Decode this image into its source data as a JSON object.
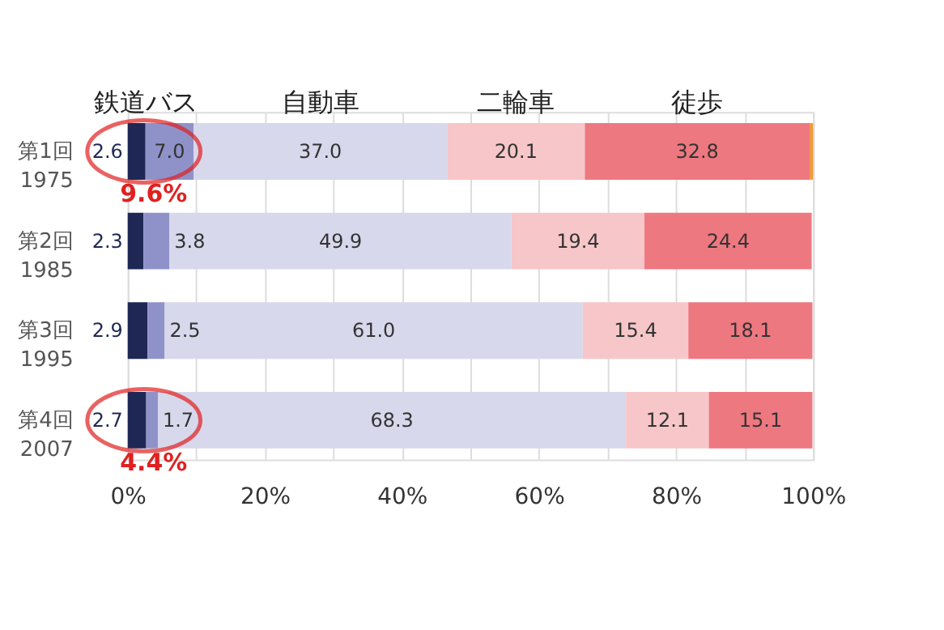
{
  "chart_data": {
    "type": "bar",
    "orientation": "horizontal",
    "stacked": true,
    "categories": [
      "第1回\n1975",
      "第2回\n1985",
      "第3回\n1995",
      "第4回\n2007"
    ],
    "series": [
      {
        "name": "鉄道",
        "color": "#1f2754",
        "values": [
          2.6,
          2.3,
          2.9,
          2.7
        ],
        "value_labels": [
          "2.6",
          "2.3",
          "2.9",
          "2.7"
        ]
      },
      {
        "name": "バス",
        "color": "#8f92c9",
        "values": [
          7.0,
          3.8,
          2.5,
          1.7
        ],
        "value_labels": [
          "7.0",
          "3.8",
          "2.5",
          "1.7"
        ]
      },
      {
        "name": "自動車",
        "color": "#d8d8ec",
        "values": [
          37.0,
          49.9,
          61.0,
          68.3
        ],
        "value_labels": [
          "37.0",
          "49.9",
          "61.0",
          "68.3"
        ]
      },
      {
        "name": "二輪車",
        "color": "#f6c6c8",
        "values": [
          20.1,
          19.4,
          15.4,
          12.1
        ],
        "value_labels": [
          "20.1",
          "19.4",
          "15.4",
          "12.1"
        ]
      },
      {
        "name": "徒歩",
        "color": "#ee7880",
        "values": [
          32.8,
          24.4,
          18.1,
          15.1
        ],
        "value_labels": [
          "32.8",
          "24.4",
          "18.1",
          "15.1"
        ]
      },
      {
        "color": "#f39a3a",
        "values": [
          0.5,
          null,
          null,
          null
        ]
      }
    ],
    "xlim": [
      0,
      100
    ],
    "xticks": [
      {
        "value": 0,
        "label": "0%"
      },
      {
        "value": 10,
        "label": null
      },
      {
        "value": 20,
        "label": "20%"
      },
      {
        "value": 30,
        "label": null
      },
      {
        "value": 40,
        "label": "40%"
      },
      {
        "value": 50,
        "label": null
      },
      {
        "value": 60,
        "label": "60%"
      },
      {
        "value": 70,
        "label": null
      },
      {
        "value": 80,
        "label": "80%"
      },
      {
        "value": 90,
        "label": null
      },
      {
        "value": 100,
        "label": "100%"
      }
    ],
    "grid": "x",
    "annotations": [
      "9.6%",
      "4.4%"
    ]
  }
}
